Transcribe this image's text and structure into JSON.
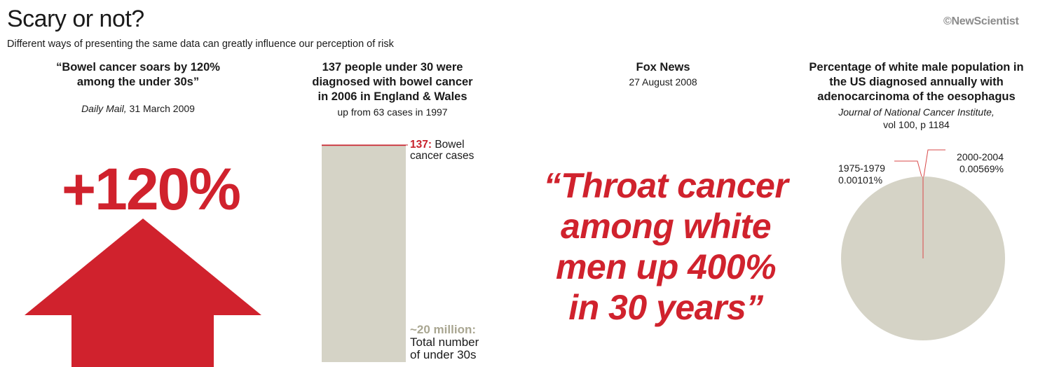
{
  "header": {
    "title": "Scary or not?",
    "subtitle": "Different ways of presenting the same data can greatly influence our perception of risk",
    "brand": "©NewScientist"
  },
  "panel1": {
    "headline_line1": "“Bowel cancer soars by 120%",
    "headline_line2": "among the under 30s”",
    "source_name": "Daily Mail,",
    "source_date": " 31 March 2009",
    "big_number": "+120%",
    "arrow_color": "#d0222d"
  },
  "panel2": {
    "headline_line1": "137 people under 30 were",
    "headline_line2": "diagnosed with bowel cancer",
    "headline_line3": "in 2006 in England & Wales",
    "subline": "up from 63 cases in 1997"
  },
  "panel3": {
    "source_name": "Fox News",
    "source_date": "27 August 2008",
    "quote_line1": "“Throat cancer",
    "quote_line2": "among white",
    "quote_line3": "men up 400%",
    "quote_line4": "in 30 years”"
  },
  "panel4": {
    "headline_line1": "Percentage of white male population in",
    "headline_line2": "the US diagnosed annually with",
    "headline_line3": "adenocarcinoma of the oesophagus",
    "source_line1": "Journal of National Cancer Institute,",
    "source_line2": "vol 100, p 1184"
  },
  "chart_data": [
    {
      "type": "bar",
      "categories": [
        "Bowel cancer cases",
        "Total number of under 30s"
      ],
      "values": [
        137,
        20000000
      ],
      "labels": [
        {
          "value_text": "137:",
          "text_line1": " Bowel",
          "text_line2": "cancer cases"
        },
        {
          "value_text": "~20 million:",
          "text_line1": "Total number",
          "text_line2": "of under 30s"
        }
      ],
      "colors": {
        "cases": "#c8222c",
        "population": "#d5d3c6"
      }
    },
    {
      "type": "pie",
      "categories": [
        "1975-1979",
        "2000-2004"
      ],
      "values": [
        0.00101,
        0.00569
      ],
      "value_labels": [
        "0.00101%",
        "0.00569%"
      ],
      "total": 100,
      "colors": {
        "pie": "#d5d3c6",
        "slice_lines": "#d94a4a"
      }
    }
  ]
}
